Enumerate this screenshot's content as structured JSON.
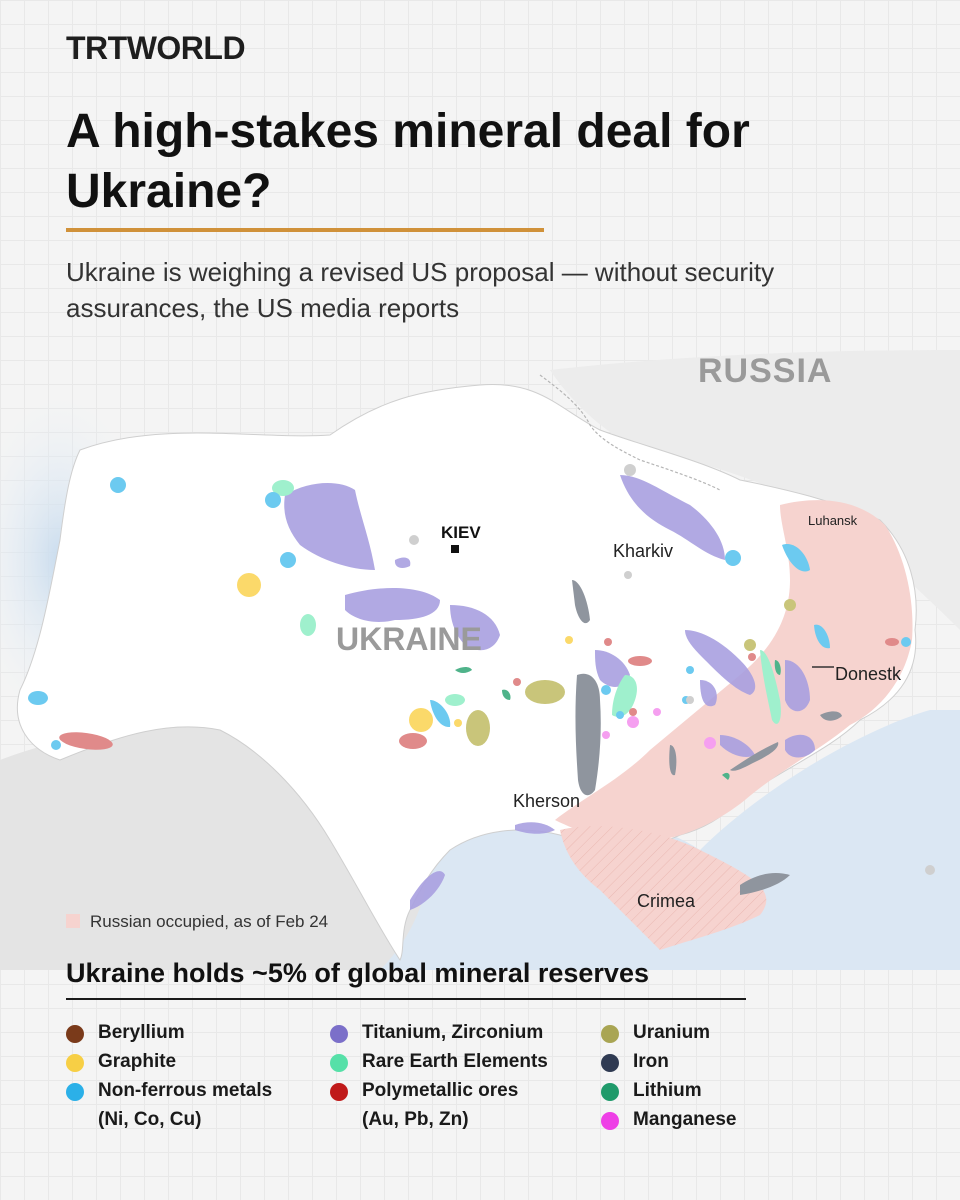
{
  "brand": {
    "logo_text": "TRTWORLD"
  },
  "headline": "A high-stakes mineral deal for Ukraine?",
  "subtitle": "Ukraine is weighing a revised US proposal — without security assurances, the US media reports",
  "map": {
    "labels": {
      "russia": "RUSSIA",
      "ukraine": "UKRAINE",
      "capital": "KIEV",
      "kharkiv": "Kharkiv",
      "luhansk": "Luhansk",
      "donetsk": "Donestk",
      "kherson": "Kherson",
      "crimea": "Crimea"
    },
    "occupied_legend": "Russian occupied, as of Feb 24",
    "colors": {
      "land": "#ffffff",
      "sea": "#dbe7f3",
      "neighbors": "#e6e6e6",
      "occupied": "#f6d3cf",
      "accent_rule": "#d0913a"
    }
  },
  "reserves_title": "Ukraine holds ~5% of global mineral reserves",
  "legend": {
    "col1": [
      {
        "label": "Beryllium",
        "color": "#7a3a1a"
      },
      {
        "label": "Graphite",
        "color": "#f7cf45"
      },
      {
        "label": "Non-ferrous metals",
        "sub": "(Ni, Co, Cu)",
        "color": "#2bb0e8"
      }
    ],
    "col2": [
      {
        "label": "Titanium, Zirconium",
        "color": "#7b6fc9"
      },
      {
        "label": "Rare Earth Elements",
        "color": "#56e0a8"
      },
      {
        "label": "Polymetallic ores",
        "sub": "(Au, Pb, Zn)",
        "color": "#c01a1a"
      }
    ],
    "col3": [
      {
        "label": "Uranium",
        "color": "#a9a553"
      },
      {
        "label": "Iron",
        "color": "#2f3a52"
      },
      {
        "label": "Lithium",
        "color": "#1f9a6a"
      },
      {
        "label": "Manganese",
        "color": "#ee3fe6"
      }
    ]
  }
}
